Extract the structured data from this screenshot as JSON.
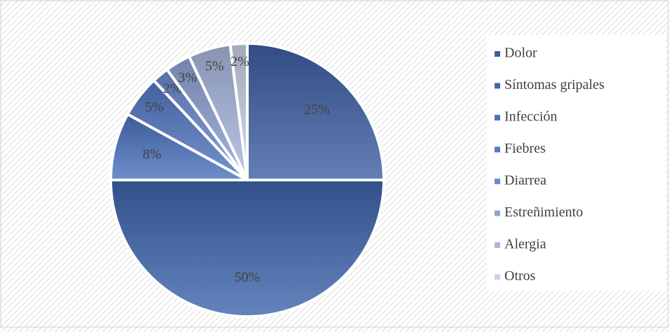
{
  "chart_data": {
    "type": "pie",
    "categories": [
      "Dolor",
      "Síntomas gripales",
      "Infección",
      "Fiebres",
      "Diarrea",
      "Estreñimiento",
      "Alergia",
      "Otros"
    ],
    "values": [
      25,
      50,
      8,
      5,
      2,
      3,
      5,
      2
    ],
    "value_labels": [
      "25%",
      "50%",
      "8%",
      "5%",
      "2%",
      "3%",
      "5%",
      "2%"
    ],
    "colors": [
      "#3d5fa3",
      "#3f64ab",
      "#4a72bf",
      "#5478c4",
      "#6b8bd0",
      "#8ea3d5",
      "#a9b8de",
      "#c9d2ea"
    ],
    "legend": "right"
  }
}
